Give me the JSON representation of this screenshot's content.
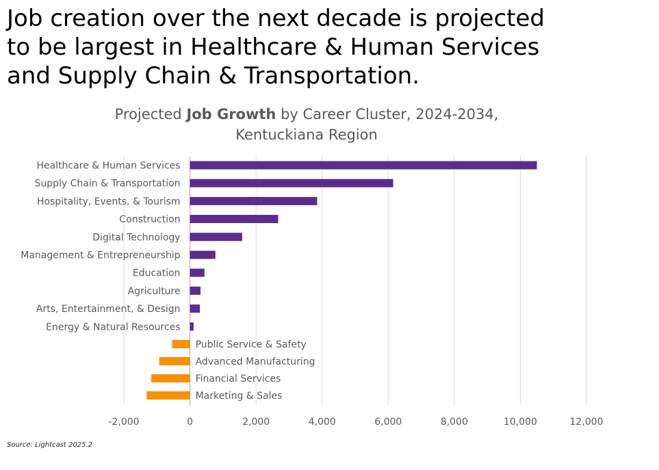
{
  "headline": [
    "Job creation over the next decade is projected",
    "to be largest in Healthcare & Human Services",
    "and Supply Chain & Transportation."
  ],
  "chart_title": {
    "prefix": "Projected ",
    "bold": "Job Growth",
    "suffix": " by Career Cluster, 2024-2034,",
    "line2": "Kentuckiana Region"
  },
  "source": "Source: Lightcast 2025.2",
  "colors": {
    "positive": "#5b2c8c",
    "negative": "#f79100",
    "grid": "#d9d9d9",
    "text": "#595959"
  },
  "chart_data": {
    "type": "bar",
    "orientation": "horizontal",
    "title": "Projected Job Growth by Career Cluster, 2024-2034, Kentuckiana Region",
    "categories": [
      "Healthcare & Human Services",
      "Supply Chain & Transportation",
      "Hospitality, Events, & Tourism",
      "Construction",
      "Digital Technology",
      "Management & Entrepreneurship",
      "Education",
      "Agriculture",
      "Arts, Entertainment, & Design",
      "Energy & Natural Resources",
      "Public Service & Safety",
      "Advanced Manufacturing",
      "Financial Services",
      "Marketing & Sales"
    ],
    "values": [
      10500,
      6150,
      3850,
      2670,
      1580,
      770,
      440,
      320,
      300,
      110,
      -540,
      -930,
      -1170,
      -1310
    ],
    "xlim": [
      -2000,
      12000
    ],
    "xticks": [
      -2000,
      0,
      2000,
      4000,
      6000,
      8000,
      10000,
      12000
    ],
    "xtick_labels": [
      "-2,000",
      "0",
      "2,000",
      "4,000",
      "6,000",
      "8,000",
      "10,000",
      "12,000"
    ],
    "grid": true,
    "legend": "none"
  }
}
